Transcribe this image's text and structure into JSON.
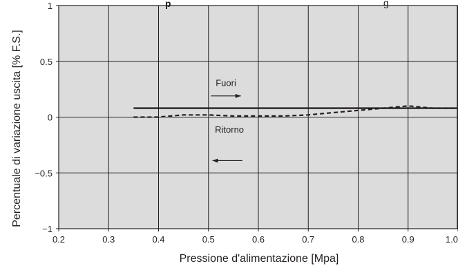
{
  "chart_data": {
    "type": "line",
    "title_fragment_left": "p",
    "title_fragment_right": "g",
    "xlabel": "Pressione d'alimentazione [Mpa]",
    "ylabel": "Percentuale di variazione uscita [% F.S.]",
    "xlim": [
      0.2,
      1.0
    ],
    "ylim": [
      -1,
      1
    ],
    "x_ticks": [
      "0.2",
      "0.3",
      "0.4",
      "0.5",
      "0.6",
      "0.7",
      "0.8",
      "0.9",
      "1.0"
    ],
    "y_ticks": [
      "1",
      "0.5",
      "0",
      "−0.5",
      "−1"
    ],
    "grid": true,
    "series": [
      {
        "name": "Fuori",
        "style": "solid",
        "x": [
          0.35,
          0.4,
          0.5,
          0.6,
          0.7,
          0.8,
          0.9,
          1.0
        ],
        "y": [
          0.08,
          0.08,
          0.08,
          0.08,
          0.08,
          0.08,
          0.08,
          0.08
        ]
      },
      {
        "name": "Ritorno",
        "style": "dashed",
        "x": [
          0.35,
          0.4,
          0.45,
          0.5,
          0.55,
          0.6,
          0.65,
          0.7,
          0.75,
          0.8,
          0.85,
          0.9,
          0.95,
          1.0
        ],
        "y": [
          0.0,
          0.0,
          0.02,
          0.02,
          0.01,
          0.01,
          0.01,
          0.02,
          0.04,
          0.06,
          0.08,
          0.1,
          0.08,
          0.08
        ]
      }
    ],
    "annotations": [
      {
        "text": "Fuori",
        "arrow": "right"
      },
      {
        "text": "Ritorno",
        "arrow": "left"
      }
    ],
    "colors": {
      "plot_background": "#dcdcdd",
      "grid": "#231f20",
      "line": "#231f20",
      "text": "#231f20"
    }
  }
}
